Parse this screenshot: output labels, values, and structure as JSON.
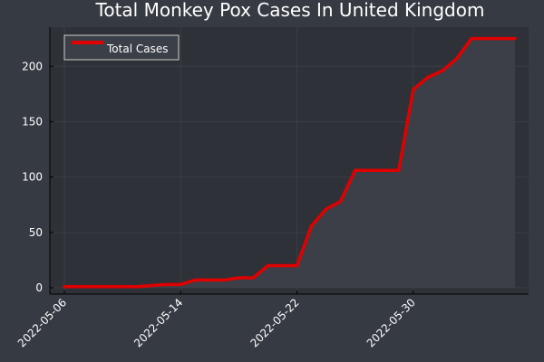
{
  "colors": {
    "page_bg": "#363a42",
    "plot_bg": "#2e3137",
    "area_fill": "#3c3f47",
    "line": "#e00000",
    "text": "#ffffff",
    "axis": "#000000",
    "grid": "#3a3e45",
    "legend_bg": "#3b3f47",
    "legend_border": "#cfcfcf"
  },
  "chart_data": {
    "type": "area",
    "title": "Total Monkey Pox Cases In United Kingdom",
    "xlabel": "",
    "ylabel": "",
    "x": [
      "2022-05-06",
      "2022-05-07",
      "2022-05-08",
      "2022-05-09",
      "2022-05-10",
      "2022-05-11",
      "2022-05-12",
      "2022-05-13",
      "2022-05-14",
      "2022-05-15",
      "2022-05-16",
      "2022-05-17",
      "2022-05-18",
      "2022-05-19",
      "2022-05-20",
      "2022-05-21",
      "2022-05-22",
      "2022-05-23",
      "2022-05-24",
      "2022-05-25",
      "2022-05-26",
      "2022-05-27",
      "2022-05-28",
      "2022-05-29",
      "2022-05-30",
      "2022-05-31",
      "2022-06-01",
      "2022-06-02",
      "2022-06-03",
      "2022-06-04",
      "2022-06-05",
      "2022-06-06"
    ],
    "series": [
      {
        "name": "Total Cases",
        "values": [
          1,
          1,
          1,
          1,
          1,
          1,
          2,
          3,
          3,
          7,
          7,
          7,
          9,
          9,
          20,
          20,
          20,
          56,
          71,
          78,
          106,
          106,
          106,
          106,
          179,
          190,
          196,
          207,
          225,
          225,
          225,
          225
        ]
      }
    ],
    "xticks": [
      "2022-05-06",
      "2022-05-14",
      "2022-05-22",
      "2022-05-30"
    ],
    "yticks": [
      0,
      50,
      100,
      150,
      200
    ],
    "xlim": [
      "2022-05-06",
      "2022-06-06"
    ],
    "ylim": [
      0,
      228
    ],
    "grid": true,
    "legend": "top-left"
  }
}
